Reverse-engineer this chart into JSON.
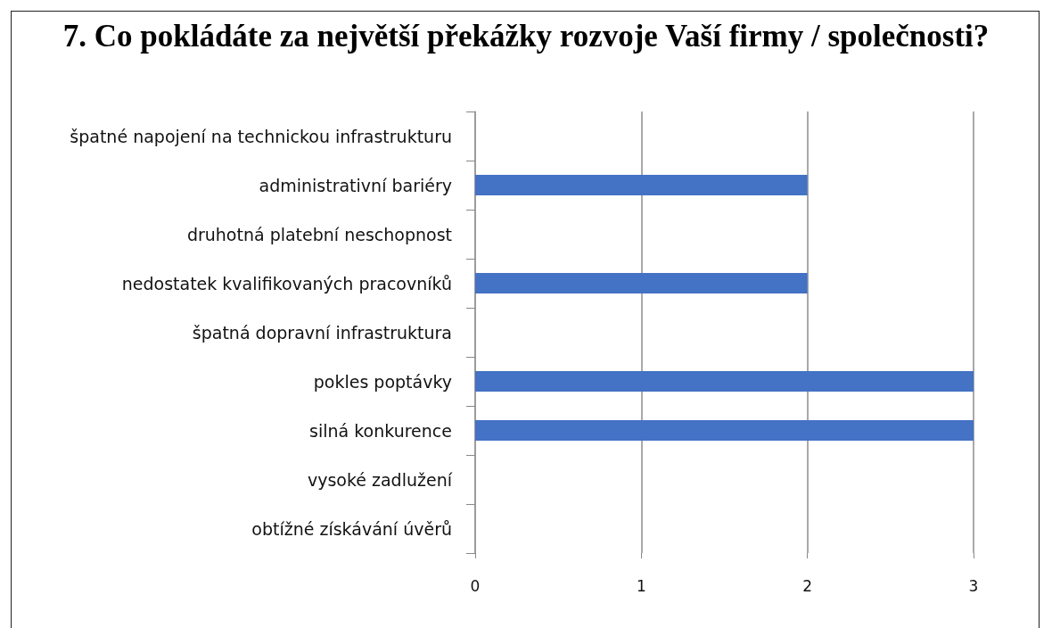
{
  "chart_data": {
    "type": "bar",
    "orientation": "horizontal",
    "title": "7. Co pokládáte za největší překážky rozvoje Vaší firmy / společnosti?",
    "categories": [
      "špatné napojení na technickou infrastrukturu",
      "administrativní bariéry",
      "druhotná platební neschopnost",
      "nedostatek kvalifikovaných pracovníků",
      "špatná dopravní infrastruktura",
      "pokles poptávky",
      "silná konkurence",
      "vysoké zadlužení",
      "obtížné získávání úvěrů"
    ],
    "values": [
      0,
      2,
      0,
      2,
      0,
      3,
      3,
      0,
      0
    ],
    "color": "#4472c4",
    "xlim": [
      0,
      3
    ],
    "xticks": [
      0,
      1,
      2,
      3
    ],
    "grid": "x"
  }
}
